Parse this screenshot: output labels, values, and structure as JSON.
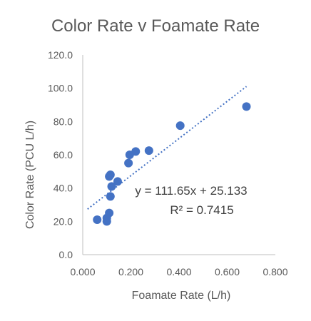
{
  "chart_data": {
    "type": "scatter",
    "title": "Color Rate v Foamate Rate",
    "xlabel": "Foamate Rate (L/h)",
    "ylabel": "Color  Rate (PCU L/h)",
    "xlim": [
      0,
      0.8
    ],
    "ylim": [
      0,
      120
    ],
    "x_ticks": [
      "0.000",
      "0.200",
      "0.400",
      "0.600",
      "0.800"
    ],
    "y_ticks": [
      "0.0",
      "20.0",
      "40.0",
      "60.0",
      "80.0",
      "100.0",
      "120.0"
    ],
    "grid": "none",
    "series": [
      {
        "color": "#4472C4",
        "points": [
          {
            "x": 0.06,
            "y": 21
          },
          {
            "x": 0.1,
            "y": 22
          },
          {
            "x": 0.1,
            "y": 20
          },
          {
            "x": 0.11,
            "y": 25
          },
          {
            "x": 0.11,
            "y": 47
          },
          {
            "x": 0.115,
            "y": 48
          },
          {
            "x": 0.115,
            "y": 35
          },
          {
            "x": 0.12,
            "y": 41
          },
          {
            "x": 0.145,
            "y": 44
          },
          {
            "x": 0.19,
            "y": 55
          },
          {
            "x": 0.195,
            "y": 60
          },
          {
            "x": 0.22,
            "y": 62
          },
          {
            "x": 0.275,
            "y": 62.5
          },
          {
            "x": 0.405,
            "y": 77.5
          },
          {
            "x": 0.68,
            "y": 89
          }
        ]
      }
    ],
    "trendline": {
      "style": "dotted",
      "color": "#4472C4",
      "slope": 111.65,
      "intercept": 25.133,
      "x_range": [
        0.02,
        0.68
      ],
      "equation": "y = 111.65x + 25.133",
      "r_squared": "R² = 0.7415"
    }
  }
}
